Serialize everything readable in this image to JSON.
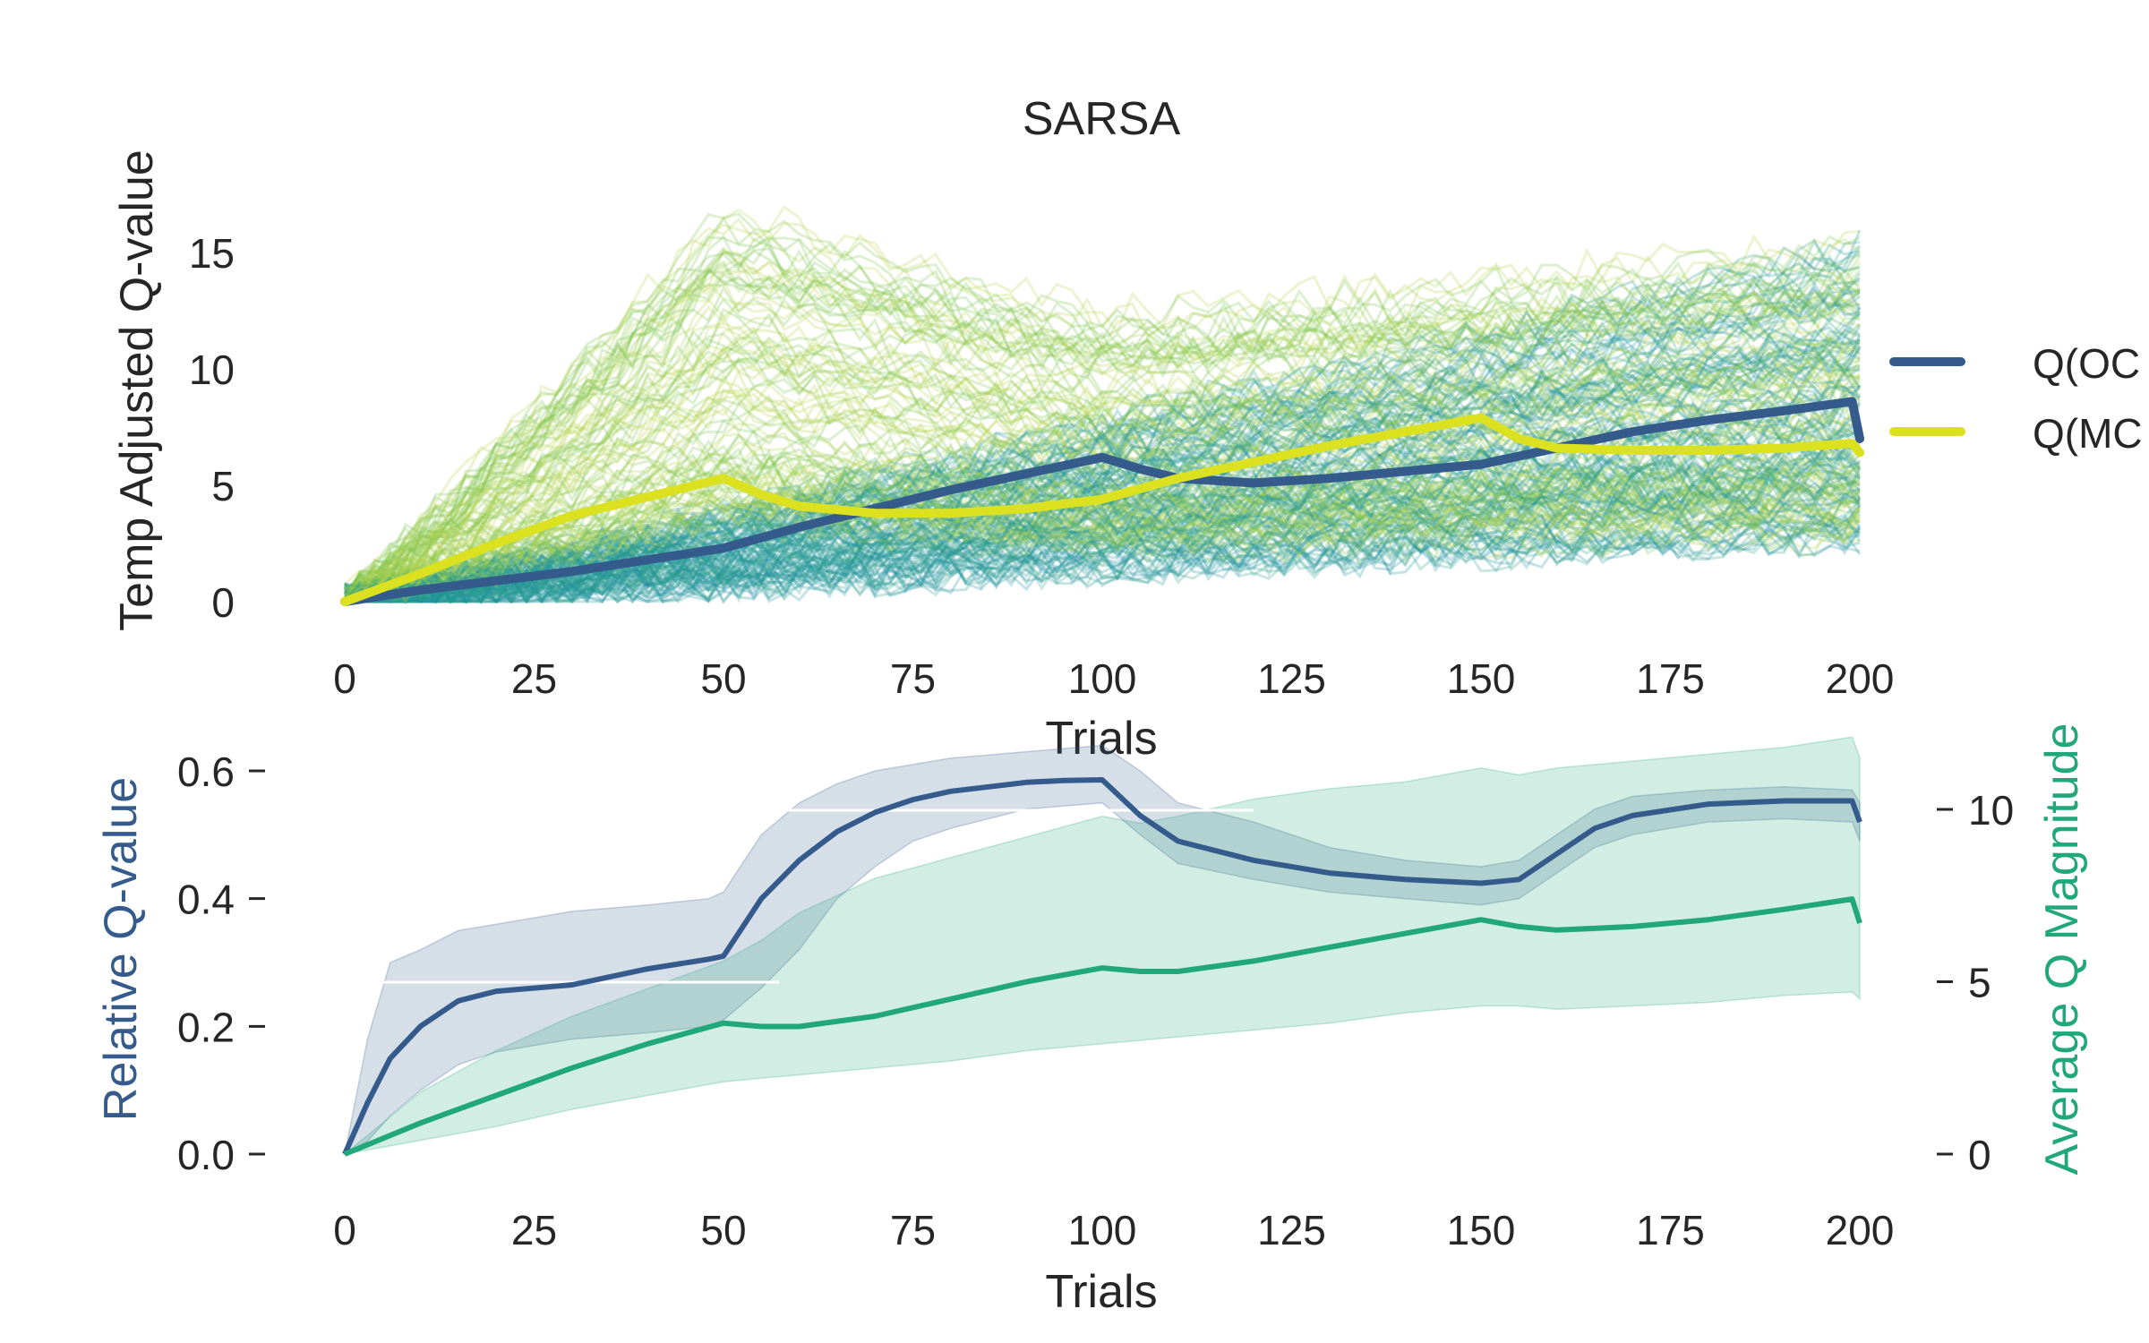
{
  "chart_data": [
    {
      "type": "line",
      "title": "SARSA",
      "xlabel": "Trials",
      "ylabel": "Temp Adjusted Q-value",
      "xlim": [
        0,
        200
      ],
      "ylim": [
        -1,
        19
      ],
      "xticks": [
        0,
        25,
        50,
        75,
        100,
        125,
        150,
        175,
        200
      ],
      "yticks": [
        0,
        5,
        10,
        15
      ],
      "grid": false,
      "legend_position": "right",
      "series": [
        {
          "name": "Q(OC",
          "color": "#345b8c",
          "x": [
            0,
            10,
            20,
            30,
            40,
            50,
            60,
            70,
            80,
            90,
            100,
            105,
            110,
            120,
            130,
            140,
            150,
            160,
            170,
            180,
            190,
            199,
            200
          ],
          "values": [
            0,
            0.5,
            0.9,
            1.3,
            1.8,
            2.3,
            3.2,
            4.0,
            4.8,
            5.5,
            6.2,
            5.7,
            5.3,
            5.1,
            5.3,
            5.6,
            5.9,
            6.6,
            7.3,
            7.8,
            8.2,
            8.6,
            7.0
          ]
        },
        {
          "name": "Q(MC",
          "color": "#dbe01f",
          "x": [
            0,
            10,
            20,
            30,
            40,
            50,
            55,
            60,
            70,
            80,
            90,
            100,
            110,
            120,
            130,
            140,
            150,
            155,
            160,
            170,
            180,
            190,
            199,
            200
          ],
          "values": [
            0,
            1.2,
            2.5,
            3.7,
            4.5,
            5.3,
            4.6,
            4.1,
            3.8,
            3.8,
            4.0,
            4.4,
            5.3,
            6.0,
            6.7,
            7.3,
            7.9,
            7.0,
            6.6,
            6.5,
            6.5,
            6.6,
            6.8,
            6.4
          ]
        }
      ],
      "background_trajectories": {
        "count": 220,
        "colors": [
          "#1a8fa0",
          "#2aa18a",
          "#7cc24a",
          "#b3d44a"
        ],
        "opacity": 0.25,
        "x_range": [
          0,
          200
        ],
        "value_range": [
          2.8,
          17.6
        ]
      }
    },
    {
      "type": "line",
      "xlabel": "Trials",
      "ylabel": "Relative Q-value",
      "ylabel_right": "Average Q Magnitude",
      "xlim": [
        0,
        200
      ],
      "ylim": [
        -0.04,
        0.66
      ],
      "ylim_right": [
        -0.6,
        12.4
      ],
      "xticks": [
        0,
        25,
        50,
        75,
        100,
        125,
        150,
        175,
        200
      ],
      "yticks": [
        0.0,
        0.2,
        0.4,
        0.6
      ],
      "yticks_right": [
        0,
        5,
        10
      ],
      "grid": false,
      "series": [
        {
          "name": "",
          "axis": "left",
          "color": "#345b8c",
          "x": [
            0,
            3,
            6,
            10,
            15,
            20,
            30,
            40,
            48,
            50,
            55,
            60,
            65,
            70,
            75,
            80,
            90,
            95,
            100,
            105,
            110,
            120,
            130,
            140,
            150,
            155,
            160,
            165,
            170,
            180,
            190,
            199,
            200
          ],
          "values": [
            0,
            0.08,
            0.15,
            0.2,
            0.24,
            0.255,
            0.265,
            0.29,
            0.305,
            0.31,
            0.4,
            0.46,
            0.505,
            0.535,
            0.555,
            0.568,
            0.582,
            0.585,
            0.586,
            0.53,
            0.49,
            0.46,
            0.44,
            0.43,
            0.424,
            0.43,
            0.47,
            0.51,
            0.53,
            0.548,
            0.553,
            0.553,
            0.52
          ],
          "band_lower": [
            0,
            0.02,
            0.06,
            0.1,
            0.14,
            0.16,
            0.18,
            0.19,
            0.2,
            0.21,
            0.26,
            0.32,
            0.4,
            0.45,
            0.49,
            0.51,
            0.54,
            0.545,
            0.55,
            0.5,
            0.455,
            0.43,
            0.41,
            0.4,
            0.39,
            0.4,
            0.44,
            0.48,
            0.5,
            0.52,
            0.525,
            0.52,
            0.49
          ],
          "band_upper": [
            0,
            0.18,
            0.3,
            0.32,
            0.35,
            0.36,
            0.38,
            0.39,
            0.4,
            0.41,
            0.5,
            0.55,
            0.58,
            0.6,
            0.61,
            0.62,
            0.63,
            0.635,
            0.64,
            0.6,
            0.55,
            0.52,
            0.48,
            0.46,
            0.45,
            0.46,
            0.5,
            0.54,
            0.56,
            0.57,
            0.575,
            0.57,
            0.55
          ]
        },
        {
          "name": "",
          "axis": "right",
          "color": "#20a77a",
          "x": [
            0,
            10,
            20,
            30,
            40,
            50,
            55,
            60,
            70,
            80,
            90,
            100,
            105,
            110,
            120,
            130,
            140,
            150,
            155,
            160,
            170,
            180,
            190,
            199,
            200
          ],
          "values": [
            0,
            0.9,
            1.7,
            2.5,
            3.2,
            3.8,
            3.7,
            3.7,
            4.0,
            4.5,
            5.0,
            5.4,
            5.3,
            5.3,
            5.6,
            6.0,
            6.4,
            6.8,
            6.6,
            6.5,
            6.6,
            6.8,
            7.1,
            7.4,
            6.7
          ],
          "band_lower": [
            0,
            0.4,
            0.8,
            1.3,
            1.7,
            2.1,
            2.2,
            2.3,
            2.5,
            2.7,
            3.0,
            3.2,
            3.3,
            3.4,
            3.6,
            3.8,
            4.1,
            4.3,
            4.3,
            4.2,
            4.3,
            4.4,
            4.6,
            4.7,
            4.5
          ],
          "band_upper": [
            0,
            1.8,
            3.0,
            4.0,
            4.8,
            5.6,
            6.2,
            7.0,
            8.0,
            8.6,
            9.2,
            9.8,
            9.6,
            9.8,
            10.3,
            10.6,
            10.8,
            11.2,
            11.0,
            11.2,
            11.4,
            11.6,
            11.8,
            12.1,
            11.5
          ]
        }
      ]
    }
  ]
}
